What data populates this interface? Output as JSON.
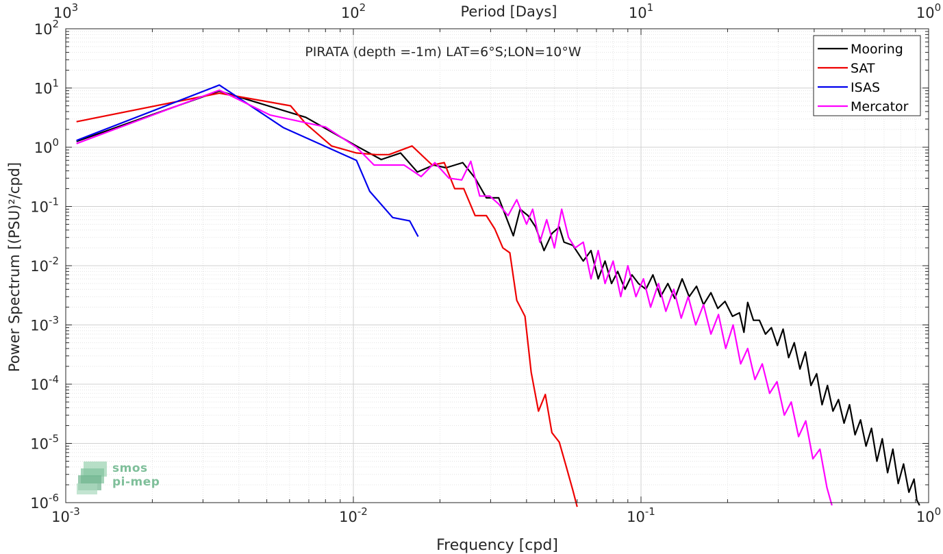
{
  "chart_data": {
    "type": "line",
    "title": "PIRATA (depth =-1m) LAT=6°S;LON=10°W",
    "xlabel": "Frequency [cpd]",
    "ylabel": "Power Spectrum [(PSU)²/cpd]",
    "x2label": "Period [Days]",
    "xscale": "log",
    "yscale": "log",
    "xlim": [
      0.001,
      1
    ],
    "ylim": [
      1e-06,
      100
    ],
    "grid": true,
    "legend_position": "top-right",
    "xticks": [
      {
        "v": 0.001,
        "b": "10",
        "e": "-3"
      },
      {
        "v": 0.01,
        "b": "10",
        "e": "-2"
      },
      {
        "v": 0.1,
        "b": "10",
        "e": "-1"
      },
      {
        "v": 1,
        "b": "10",
        "e": "0"
      }
    ],
    "x2ticks": [
      {
        "v": 0.001,
        "b": "10",
        "e": "3"
      },
      {
        "v": 0.01,
        "b": "10",
        "e": "2"
      },
      {
        "v": 0.1,
        "b": "10",
        "e": "1"
      },
      {
        "v": 1,
        "b": "10",
        "e": "0"
      }
    ],
    "yticks": [
      {
        "v": 1e-06,
        "b": "10",
        "e": "-6"
      },
      {
        "v": 1e-05,
        "b": "10",
        "e": "-5"
      },
      {
        "v": 0.0001,
        "b": "10",
        "e": "-4"
      },
      {
        "v": 0.001,
        "b": "10",
        "e": "-3"
      },
      {
        "v": 0.01,
        "b": "10",
        "e": "-2"
      },
      {
        "v": 0.1,
        "b": "10",
        "e": "-1"
      },
      {
        "v": 1,
        "b": "10",
        "e": "0"
      },
      {
        "v": 10,
        "b": "10",
        "e": "1"
      },
      {
        "v": 100,
        "b": "10",
        "e": "2"
      }
    ],
    "series": [
      {
        "name": "Mooring",
        "color": "#000000",
        "x": [
          0.00109,
          0.00342,
          0.00683,
          0.01025,
          0.0125,
          0.01459,
          0.0167,
          0.019,
          0.021,
          0.024,
          0.0265,
          0.029,
          0.032,
          0.036,
          0.038,
          0.0405,
          0.043,
          0.046,
          0.049,
          0.052,
          0.054,
          0.058,
          0.063,
          0.067,
          0.071,
          0.075,
          0.079,
          0.083,
          0.088,
          0.093,
          0.098,
          0.104,
          0.11,
          0.117,
          0.124,
          0.131,
          0.139,
          0.147,
          0.156,
          0.165,
          0.175,
          0.185,
          0.196,
          0.208,
          0.22,
          0.228,
          0.235,
          0.246,
          0.258,
          0.271,
          0.284,
          0.298,
          0.312,
          0.326,
          0.341,
          0.357,
          0.373,
          0.39,
          0.408,
          0.426,
          0.445,
          0.465,
          0.486,
          0.508,
          0.531,
          0.555,
          0.58,
          0.606,
          0.633,
          0.661,
          0.69,
          0.72,
          0.751,
          0.784,
          0.818,
          0.854,
          0.89,
          0.91,
          0.93
        ],
        "y": [
          1.25,
          8.9,
          3.2,
          1.05,
          0.62,
          0.8,
          0.38,
          0.5,
          0.45,
          0.55,
          0.3,
          0.14,
          0.14,
          0.032,
          0.09,
          0.07,
          0.045,
          0.018,
          0.035,
          0.045,
          0.025,
          0.022,
          0.012,
          0.018,
          0.006,
          0.012,
          0.005,
          0.008,
          0.004,
          0.007,
          0.005,
          0.004,
          0.007,
          0.003,
          0.005,
          0.0028,
          0.006,
          0.003,
          0.0045,
          0.0022,
          0.0035,
          0.0019,
          0.0025,
          0.0014,
          0.0016,
          0.00075,
          0.0024,
          0.0012,
          0.0012,
          0.0007,
          0.0009,
          0.00045,
          0.00085,
          0.00028,
          0.0005,
          0.00018,
          0.00035,
          9.5e-05,
          0.00015,
          4.5e-05,
          9.5e-05,
          3.5e-05,
          5.5e-05,
          2.2e-05,
          4.5e-05,
          1.4e-05,
          2.5e-05,
          9e-06,
          1.8e-05,
          5e-06,
          1.2e-05,
          3.2e-06,
          8e-06,
          2.1e-06,
          4.5e-06,
          1.5e-06,
          2.5e-06,
          1.1e-06,
          9e-07
        ]
      },
      {
        "name": "SAT",
        "color": "#ee0000",
        "x": [
          0.00109,
          0.00342,
          0.00605,
          0.00683,
          0.0084,
          0.01025,
          0.012,
          0.0133,
          0.016,
          0.0188,
          0.0207,
          0.0225,
          0.0242,
          0.0265,
          0.029,
          0.031,
          0.0331,
          0.035,
          0.037,
          0.0395,
          0.0415,
          0.044,
          0.0465,
          0.049,
          0.052,
          0.055,
          0.058,
          0.06
        ],
        "y": [
          2.7,
          8.2,
          5.0,
          2.5,
          1.05,
          0.8,
          0.75,
          0.75,
          1.05,
          0.5,
          0.55,
          0.2,
          0.2,
          0.07,
          0.07,
          0.042,
          0.02,
          0.0165,
          0.0026,
          0.0014,
          0.00016,
          3.5e-05,
          6.7e-05,
          1.52e-05,
          1.05e-05,
          4e-06,
          1.6e-06,
          8.5e-07
        ]
      },
      {
        "name": "ISAS",
        "color": "#0000ee",
        "x": [
          0.00109,
          0.00342,
          0.0057,
          0.01025,
          0.0114,
          0.0137,
          0.0157,
          0.0168
        ],
        "y": [
          1.3,
          11.2,
          2.15,
          0.6,
          0.18,
          0.065,
          0.057,
          0.031
        ]
      },
      {
        "name": "Mercator",
        "color": "#ff00ff",
        "x": [
          0.00109,
          0.00342,
          0.00513,
          0.008,
          0.01025,
          0.0118,
          0.013,
          0.015,
          0.0172,
          0.0192,
          0.0215,
          0.0238,
          0.0256,
          0.0275,
          0.0298,
          0.032,
          0.0345,
          0.037,
          0.04,
          0.042,
          0.0445,
          0.047,
          0.05,
          0.053,
          0.056,
          0.059,
          0.063,
          0.067,
          0.071,
          0.075,
          0.08,
          0.085,
          0.09,
          0.096,
          0.102,
          0.108,
          0.115,
          0.122,
          0.13,
          0.138,
          0.146,
          0.155,
          0.165,
          0.175,
          0.186,
          0.197,
          0.209,
          0.222,
          0.235,
          0.249,
          0.264,
          0.28,
          0.297,
          0.315,
          0.333,
          0.353,
          0.374,
          0.396,
          0.419,
          0.443,
          0.461
        ],
        "y": [
          1.15,
          9.2,
          3.5,
          2.2,
          1.0,
          0.5,
          0.5,
          0.5,
          0.32,
          0.55,
          0.3,
          0.28,
          0.58,
          0.15,
          0.15,
          0.11,
          0.07,
          0.13,
          0.05,
          0.09,
          0.025,
          0.06,
          0.02,
          0.09,
          0.03,
          0.02,
          0.025,
          0.006,
          0.018,
          0.005,
          0.012,
          0.003,
          0.01,
          0.003,
          0.006,
          0.002,
          0.005,
          0.0017,
          0.004,
          0.0013,
          0.003,
          0.001,
          0.0022,
          0.0007,
          0.0015,
          0.0004,
          0.001,
          0.00022,
          0.0004,
          0.00012,
          0.00022,
          7e-05,
          0.00011,
          3e-05,
          5e-05,
          1.3e-05,
          2.4e-05,
          5.5e-06,
          8e-06,
          1.8e-06,
          9e-07
        ]
      }
    ]
  },
  "watermark": {
    "line1": "smos",
    "line2": "pi-mep",
    "color": "#7fbf9a"
  }
}
